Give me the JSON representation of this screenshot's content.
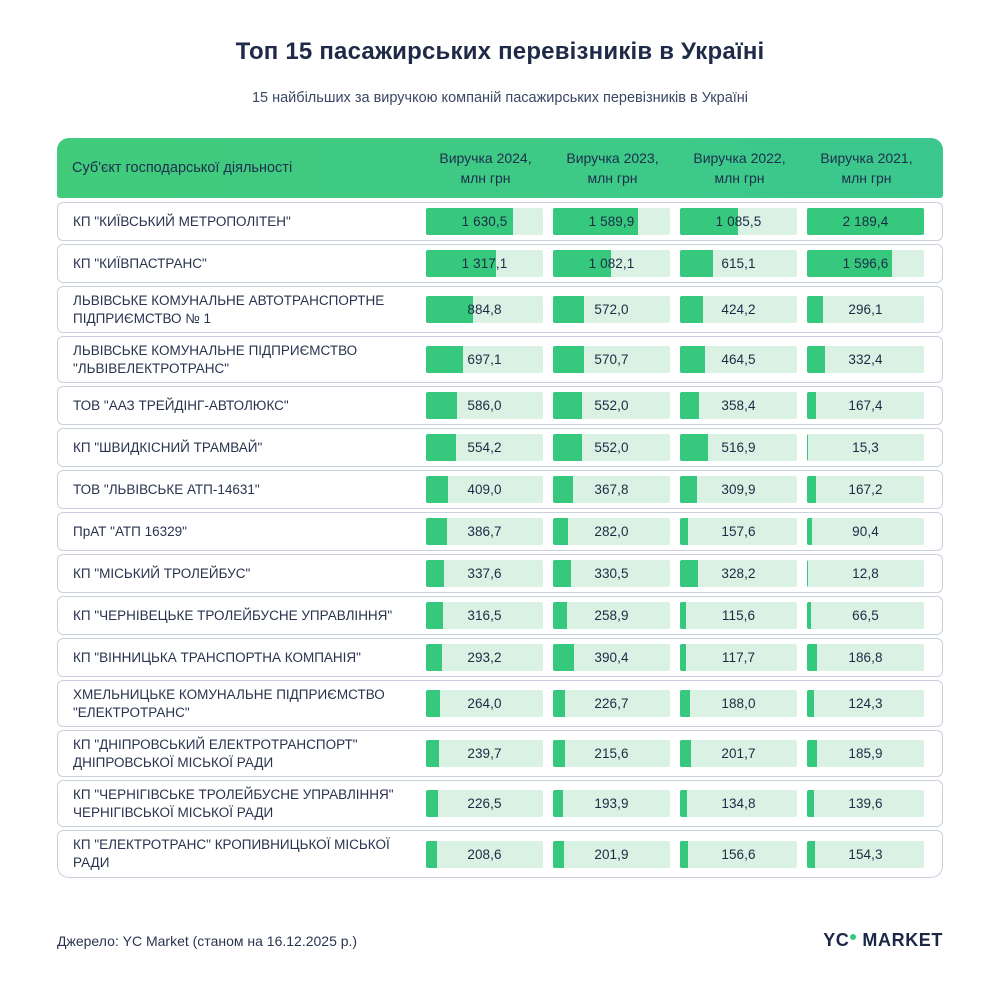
{
  "title": "Топ 15 пасажирських перевізників в Україні",
  "subtitle": "15 найбільших за виручкою компаній пасажирських перевізників в Україні",
  "source": "Джерело: YC Market (станом на 16.12.2025 р.)",
  "logo": {
    "part1": "YC",
    "part2": "MARKET"
  },
  "colors": {
    "header_gradient_left": "#41cb7b",
    "header_gradient_right": "#3bc88e",
    "bar_fill": "#36c97e",
    "bar_background": "#d9f2e3",
    "row_border": "#c9cfdc",
    "text_navy": "#1e2a47",
    "logo_dot": "#2ecc7a"
  },
  "chart_data": {
    "type": "bar",
    "layout": "table-with-inline-bars",
    "title": "Топ 15 пасажирських перевізників в Україні",
    "subtitle": "15 найбільших за виручкою компаній пасажирських перевізників в Україні",
    "unit": "млн грн",
    "bar_scale_max": 2189.4,
    "columns": [
      "Суб'єкт господарської діяльності",
      "Виручка 2024,\nмлн грн",
      "Виручка 2023,\nмлн грн",
      "Виручка 2022,\nмлн грн",
      "Виручка 2021,\nмлн грн"
    ],
    "years": [
      "2024",
      "2023",
      "2022",
      "2021"
    ],
    "rows": [
      {
        "name": "КП \"КИЇВСЬКИЙ МЕТРОПОЛІТЕН\"",
        "values": [
          1630.5,
          1589.9,
          1085.5,
          2189.4
        ],
        "labels": [
          "1 630,5",
          "1 589,9",
          "1 085,5",
          "2 189,4"
        ]
      },
      {
        "name": "КП \"КИЇВПАСТРАНС\"",
        "values": [
          1317.1,
          1082.1,
          615.1,
          1596.6
        ],
        "labels": [
          "1 317,1",
          "1 082,1",
          "615,1",
          "1 596,6"
        ]
      },
      {
        "name": "ЛЬВІВСЬКЕ КОМУНАЛЬНЕ АВТОТРАНСПОРТНЕ ПІДПРИЄМСТВО № 1",
        "values": [
          884.8,
          572.0,
          424.2,
          296.1
        ],
        "labels": [
          "884,8",
          "572,0",
          "424,2",
          "296,1"
        ]
      },
      {
        "name": "ЛЬВІВСЬКЕ КОМУНАЛЬНЕ ПІДПРИЄМСТВО \"ЛЬВІВЕЛЕКТРОТРАНС\"",
        "values": [
          697.1,
          570.7,
          464.5,
          332.4
        ],
        "labels": [
          "697,1",
          "570,7",
          "464,5",
          "332,4"
        ]
      },
      {
        "name": "ТОВ \"ААЗ ТРЕЙДІНГ-АВТОЛЮКС\"",
        "values": [
          586.0,
          552.0,
          358.4,
          167.4
        ],
        "labels": [
          "586,0",
          "552,0",
          "358,4",
          "167,4"
        ]
      },
      {
        "name": "КП \"ШВИДКІСНИЙ ТРАМВАЙ\"",
        "values": [
          554.2,
          552.0,
          516.9,
          15.3
        ],
        "labels": [
          "554,2",
          "552,0",
          "516,9",
          "15,3"
        ]
      },
      {
        "name": "ТОВ \"ЛЬВІВСЬКЕ АТП-14631\"",
        "values": [
          409.0,
          367.8,
          309.9,
          167.2
        ],
        "labels": [
          "409,0",
          "367,8",
          "309,9",
          "167,2"
        ]
      },
      {
        "name": "ПрАТ \"АТП 16329\"",
        "values": [
          386.7,
          282.0,
          157.6,
          90.4
        ],
        "labels": [
          "386,7",
          "282,0",
          "157,6",
          "90,4"
        ]
      },
      {
        "name": "КП \"МІСЬКИЙ ТРОЛЕЙБУС\"",
        "values": [
          337.6,
          330.5,
          328.2,
          12.8
        ],
        "labels": [
          "337,6",
          "330,5",
          "328,2",
          "12,8"
        ]
      },
      {
        "name": "КП \"ЧЕРНІВЕЦЬКЕ ТРОЛЕЙБУСНЕ УПРАВЛІННЯ\"",
        "values": [
          316.5,
          258.9,
          115.6,
          66.5
        ],
        "labels": [
          "316,5",
          "258,9",
          "115,6",
          "66,5"
        ]
      },
      {
        "name": "КП \"ВІННИЦЬКА ТРАНСПОРТНА КОМПАНІЯ\"",
        "values": [
          293.2,
          390.4,
          117.7,
          186.8
        ],
        "labels": [
          "293,2",
          "390,4",
          "117,7",
          "186,8"
        ]
      },
      {
        "name": "ХМЕЛЬНИЦЬКЕ КОМУНАЛЬНЕ ПІДПРИЄМСТВО \"ЕЛЕКТРОТРАНС\"",
        "values": [
          264.0,
          226.7,
          188.0,
          124.3
        ],
        "labels": [
          "264,0",
          "226,7",
          "188,0",
          "124,3"
        ]
      },
      {
        "name": "КП \"ДНІПРОВСЬКИЙ ЕЛЕКТРОТРАНСПОРТ\" ДНІПРОВСЬКОЇ МІСЬКОЇ РАДИ",
        "values": [
          239.7,
          215.6,
          201.7,
          185.9
        ],
        "labels": [
          "239,7",
          "215,6",
          "201,7",
          "185,9"
        ]
      },
      {
        "name": "КП \"ЧЕРНІГІВСЬКЕ ТРОЛЕЙБУСНЕ УПРАВЛІННЯ\" ЧЕРНІГІВСЬКОЇ МІСЬКОЇ РАДИ",
        "values": [
          226.5,
          193.9,
          134.8,
          139.6
        ],
        "labels": [
          "226,5",
          "193,9",
          "134,8",
          "139,6"
        ]
      },
      {
        "name": "КП \"ЕЛЕКТРОТРАНС\" КРОПИВНИЦЬКОЇ МІСЬКОЇ РАДИ",
        "values": [
          208.6,
          201.9,
          156.6,
          154.3
        ],
        "labels": [
          "208,6",
          "201,9",
          "156,6",
          "154,3"
        ]
      }
    ]
  }
}
